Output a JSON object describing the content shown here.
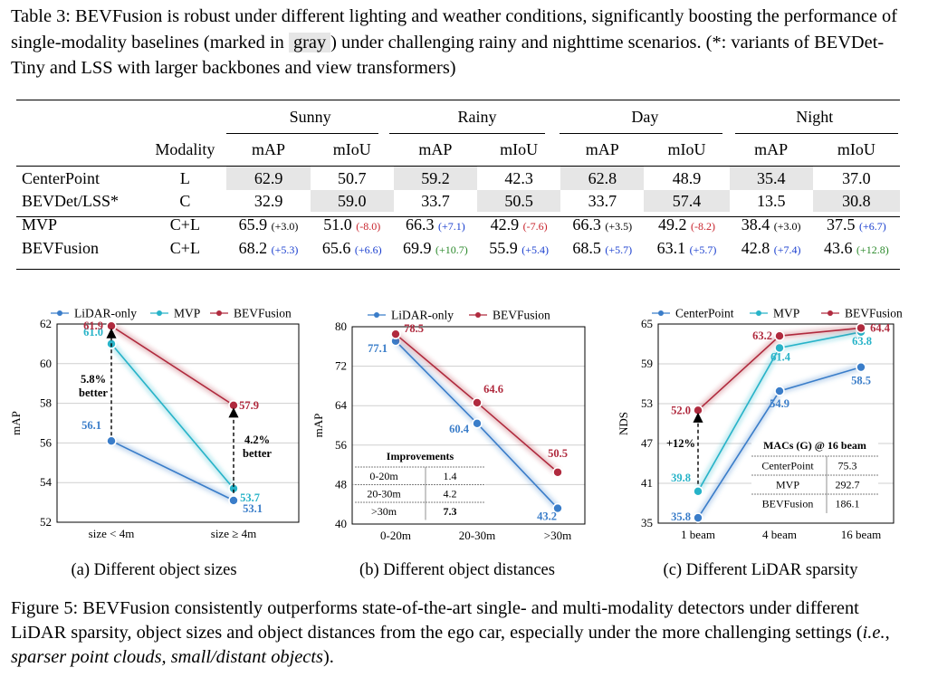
{
  "table_caption": {
    "prefix": "Table 3: BEVFusion is robust under different lighting and weather conditions, significantly boosting the performance of single-modality baselines (marked in",
    "gray_word": "gray",
    "suffix": ") under challenging rainy and nighttime scenarios. (*: variants of BEVDet-Tiny and LSS with larger backbones and view transformers)"
  },
  "table": {
    "groups": [
      "Sunny",
      "Rainy",
      "Day",
      "Night"
    ],
    "modality_header": "Modality",
    "metrics": [
      "mAP",
      "mIoU",
      "mAP",
      "mIoU",
      "mAP",
      "mIoU",
      "mAP",
      "mIoU"
    ],
    "rows": [
      {
        "name": "CenterPoint",
        "mod": "L",
        "v": [
          "62.9",
          "50.7",
          "59.2",
          "42.3",
          "62.8",
          "48.9",
          "35.4",
          "37.0"
        ],
        "d": [
          "",
          "",
          "",
          "",
          "",
          "",
          "",
          ""
        ],
        "dc": [
          "",
          "",
          "",
          "",
          "",
          "",
          "",
          ""
        ]
      },
      {
        "name": "BEVDet/LSS*",
        "mod": "C",
        "v": [
          "32.9",
          "59.0",
          "33.7",
          "50.5",
          "33.7",
          "57.4",
          "13.5",
          "30.8"
        ],
        "d": [
          "",
          "",
          "",
          "",
          "",
          "",
          "",
          ""
        ],
        "dc": [
          "",
          "",
          "",
          "",
          "",
          "",
          "",
          ""
        ]
      },
      {
        "name": "MVP",
        "mod": "C+L",
        "v": [
          "65.9",
          "51.0",
          "66.3",
          "42.9",
          "66.3",
          "49.2",
          "38.4",
          "37.5"
        ],
        "d": [
          "(+3.0)",
          "(-8.0)",
          "(+7.1)",
          "(-7.6)",
          "(+3.5)",
          "(-8.2)",
          "(+3.0)",
          "(+6.7)"
        ],
        "dc": [
          "plain",
          "neg",
          "pos",
          "neg",
          "plain",
          "neg",
          "plain",
          "pos"
        ]
      },
      {
        "name": "BEVFusion",
        "mod": "C+L",
        "v": [
          "68.2",
          "65.6",
          "69.9",
          "55.9",
          "68.5",
          "63.1",
          "42.8",
          "43.6"
        ],
        "d": [
          "(+5.3)",
          "(+6.6)",
          "(+10.7)",
          "(+5.4)",
          "(+5.7)",
          "(+5.7)",
          "(+7.4)",
          "(+12.8)"
        ],
        "dc": [
          "pos",
          "pos",
          "grn",
          "pos",
          "pos",
          "pos",
          "pos",
          "grn"
        ]
      }
    ]
  },
  "chart_data": [
    {
      "type": "line",
      "ylabel": "mAP",
      "categories": [
        "size < 4m",
        "size ≥ 4m"
      ],
      "ylim": [
        52,
        62
      ],
      "yticks": [
        "52",
        "54",
        "56",
        "58",
        "60",
        "62"
      ],
      "series": [
        {
          "name": "LiDAR-only",
          "color": "#3a7dc9",
          "values": [
            56.1,
            53.1
          ],
          "labels": [
            "56.1",
            "53.1"
          ]
        },
        {
          "name": "MVP",
          "color": "#27b3c8",
          "values": [
            61.0,
            53.7
          ],
          "labels": [
            "61.0",
            "53.7"
          ]
        },
        {
          "name": "BEVFusion",
          "color": "#b02a3e",
          "values": [
            61.9,
            57.9
          ],
          "labels": [
            "61.9",
            "57.9"
          ]
        }
      ],
      "annotations": [
        {
          "line1": "5.8%",
          "line2": "better"
        },
        {
          "line1": "4.2%",
          "line2": "better"
        }
      ],
      "subcaption": "(a) Different object sizes"
    },
    {
      "type": "line",
      "ylabel": "mAP",
      "categories": [
        "0-20m",
        "20-30m",
        ">30m"
      ],
      "ylim": [
        40,
        80
      ],
      "yticks": [
        "40",
        "48",
        "56",
        "64",
        "72",
        "80"
      ],
      "series": [
        {
          "name": "LiDAR-only",
          "color": "#3a7dc9",
          "values": [
            77.1,
            60.4,
            43.2
          ],
          "labels": [
            "77.1",
            "60.4",
            "43.2"
          ]
        },
        {
          "name": "BEVFusion",
          "color": "#b02a3e",
          "values": [
            78.5,
            64.6,
            50.5
          ],
          "labels": [
            "78.5",
            "64.6",
            "50.5"
          ]
        }
      ],
      "inset_table": {
        "title": "Improvements",
        "rows": [
          [
            "0-20m",
            "1.4"
          ],
          [
            "20-30m",
            "4.2"
          ],
          [
            ">30m",
            "7.3"
          ]
        ]
      },
      "subcaption": "(b) Different object distances"
    },
    {
      "type": "line",
      "ylabel": "NDS",
      "categories": [
        "1 beam",
        "4 beam",
        "16 beam"
      ],
      "ylim": [
        35,
        65
      ],
      "yticks": [
        "35",
        "41",
        "47",
        "53",
        "59",
        "65"
      ],
      "series": [
        {
          "name": "CenterPoint",
          "color": "#3a7dc9",
          "values": [
            35.8,
            54.9,
            58.5
          ],
          "labels": [
            "35.8",
            "54.9",
            "58.5"
          ]
        },
        {
          "name": "MVP",
          "color": "#27b3c8",
          "values": [
            39.8,
            61.4,
            63.8
          ],
          "labels": [
            "39.8",
            "61.4",
            "63.8"
          ]
        },
        {
          "name": "BEVFusion",
          "color": "#b02a3e",
          "values": [
            52.0,
            63.2,
            64.4
          ],
          "labels": [
            "52.0",
            "63.2",
            "64.4"
          ]
        }
      ],
      "annotations": [
        {
          "line1": "+12%",
          "line2": ""
        }
      ],
      "inset_table": {
        "title": "MACs (G) @ 16 beam",
        "rows": [
          [
            "CenterPoint",
            "75.3"
          ],
          [
            "MVP",
            "292.7"
          ],
          [
            "BEVFusion",
            "186.1"
          ]
        ]
      },
      "subcaption": "(c) Different LiDAR sparsity"
    }
  ],
  "figure_caption": {
    "main": "Figure 5: BEVFusion consistently outperforms state-of-the-art single- and multi-modality detectors under different LiDAR sparsity, object sizes and object distances from the ego car, especially under the more challenging settings (",
    "ie": "i.e.",
    "comma": ", ",
    "italic": "sparser point clouds",
    "sep": ", ",
    "italic2": "small/distant objects",
    "end": ")."
  }
}
